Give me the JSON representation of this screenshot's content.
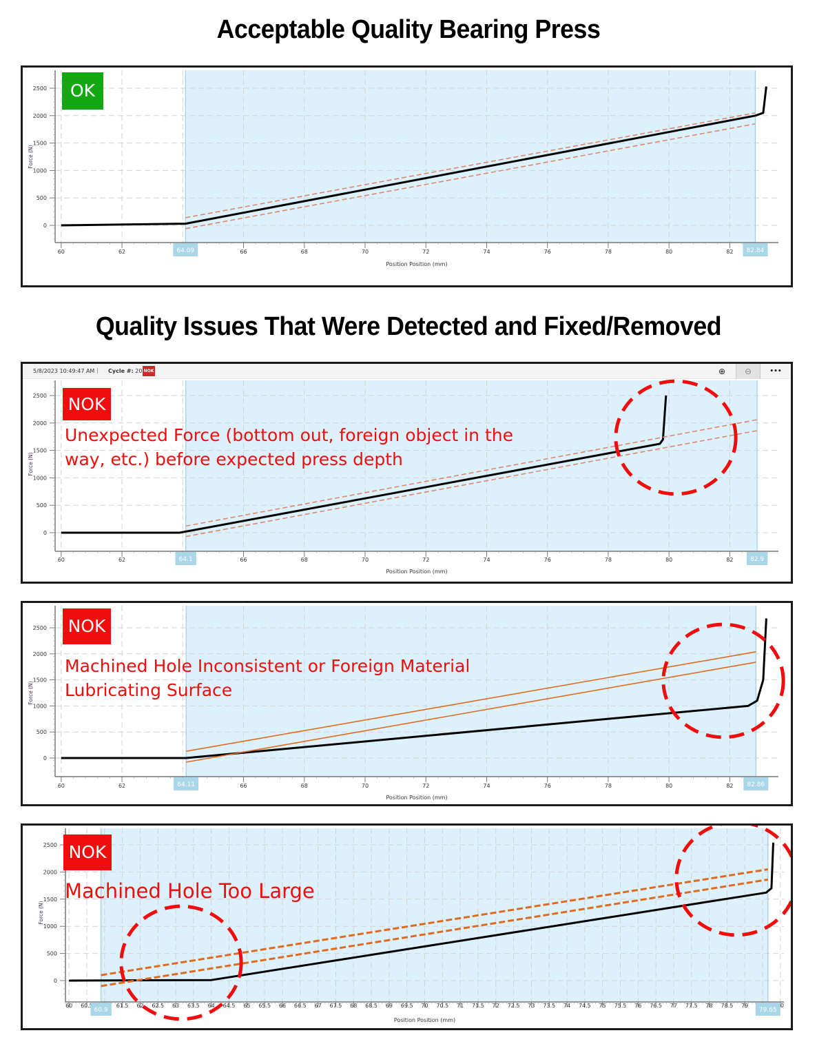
{
  "titles": {
    "acceptable": "Acceptable Quality Bearing Press",
    "issues": "Quality Issues That Were Detected and Fixed/Removed"
  },
  "colors": {
    "ok_badge": "#13a813",
    "nok_badge": "#f00d0d",
    "annotation_red": "#f00d0d",
    "window_fill": "#dcf1fc",
    "window_border": "#9dcfe4",
    "window_label_bg": "#a9d6e8",
    "limit_line": "#e0876a",
    "limit_line_bold": "#e06a1e",
    "curve": "#000000",
    "grid": "#d2d2d2",
    "axis": "#777777"
  },
  "panels": [
    {
      "id": "ok",
      "status": "OK",
      "annotation": [],
      "has_toolbar": false
    },
    {
      "id": "nok-unexpected-force",
      "status": "NOK",
      "annotation": [
        "Unexpected Force (bottom out, foreign object in the",
        "way, etc.) before expected press depth"
      ],
      "has_toolbar": true,
      "toolbar": {
        "timestamp": "5/8/2023 10:49:47 AM",
        "separator": "|",
        "cycle_label": "Cycle #:",
        "cycle_value": "20",
        "status_mini": "NOK",
        "zoom_in": "⊕",
        "zoom_out": "⊖",
        "more": "•••"
      }
    },
    {
      "id": "nok-hole-inconsistent",
      "status": "NOK",
      "annotation": [
        "Machined Hole Inconsistent or Foreign Material",
        "Lubricating Surface"
      ],
      "has_toolbar": false
    },
    {
      "id": "nok-hole-too-large",
      "status": "NOK",
      "annotation": [
        "Machined Hole Too Large"
      ],
      "has_toolbar": false
    }
  ],
  "chart_data": [
    {
      "type": "line",
      "title": "OK",
      "xlabel": "Position Position (mm)",
      "ylabel": "Force (N)",
      "xlim": [
        59.8,
        83.6
      ],
      "ylim": [
        -300,
        2750
      ],
      "x_ticks": [
        60,
        62,
        64,
        66,
        68,
        70,
        72,
        74,
        76,
        78,
        80,
        82
      ],
      "x_tick_labels": [
        "60",
        "62",
        "",
        "66",
        "68",
        "70",
        "72",
        "74",
        "76",
        "78",
        "80",
        "82"
      ],
      "y_ticks": [
        0,
        500,
        1000,
        1500,
        2000,
        2500
      ],
      "grid": true,
      "window": {
        "start": 64.09,
        "end": 82.84,
        "start_label": "64.09",
        "end_label": "82.84"
      },
      "series": [
        {
          "name": "Force curve",
          "x": [
            60,
            64.09,
            82.84,
            83.1,
            83.2
          ],
          "y": [
            0,
            30,
            2000,
            2050,
            2530
          ]
        },
        {
          "name": "Upper limit",
          "x": [
            64.09,
            82.84
          ],
          "y": [
            140,
            2050
          ],
          "style": "dashed"
        },
        {
          "name": "Lower limit",
          "x": [
            64.09,
            82.84
          ],
          "y": [
            -60,
            1850
          ],
          "style": "dashed"
        }
      ]
    },
    {
      "type": "line",
      "title": "NOK - Unexpected Force",
      "xlabel": "Position Position (mm)",
      "ylabel": "Force (N)",
      "xlim": [
        59.8,
        83.6
      ],
      "ylim": [
        -300,
        2750
      ],
      "x_ticks": [
        60,
        62,
        64,
        66,
        68,
        70,
        72,
        74,
        76,
        78,
        80,
        82
      ],
      "x_tick_labels": [
        "60",
        "62",
        "",
        "66",
        "68",
        "70",
        "72",
        "74",
        "76",
        "78",
        "80",
        "82"
      ],
      "y_ticks": [
        0,
        500,
        1000,
        1500,
        2000,
        2500
      ],
      "grid": true,
      "window": {
        "start": 64.1,
        "end": 82.9,
        "start_label": "64.1",
        "end_label": "82.9"
      },
      "series": [
        {
          "name": "Force curve",
          "x": [
            60,
            63.9,
            64.1,
            79.7,
            79.8,
            79.9
          ],
          "y": [
            0,
            0,
            20,
            1620,
            1700,
            2500
          ]
        },
        {
          "name": "Upper limit",
          "x": [
            64.1,
            82.9
          ],
          "y": [
            120,
            2060
          ],
          "style": "dashed"
        },
        {
          "name": "Lower limit",
          "x": [
            64.1,
            82.9
          ],
          "y": [
            -70,
            1860
          ],
          "style": "dashed"
        }
      ],
      "annotation_circle": {
        "cx": 79.0,
        "cy": 1700,
        "rx_mm": 2.0,
        "note": "Unexpected Force (bottom out, foreign object in the way, etc.) before expected press depth"
      }
    },
    {
      "type": "line",
      "title": "NOK - Machined Hole Inconsistent",
      "xlabel": "Position Position (mm)",
      "ylabel": "Force (N)",
      "xlim": [
        59.8,
        83.6
      ],
      "ylim": [
        -300,
        2750
      ],
      "x_ticks": [
        60,
        62,
        64,
        66,
        68,
        70,
        72,
        74,
        76,
        78,
        80,
        82
      ],
      "x_tick_labels": [
        "60",
        "62",
        "",
        "66",
        "68",
        "70",
        "72",
        "74",
        "76",
        "78",
        "80",
        "82"
      ],
      "y_ticks": [
        0,
        500,
        1000,
        1500,
        2000,
        2500
      ],
      "grid": true,
      "window": {
        "start": 64.11,
        "end": 82.86,
        "start_label": "64.11",
        "end_label": "82.86"
      },
      "series": [
        {
          "name": "Force curve",
          "x": [
            60,
            64.11,
            82.6,
            82.9,
            83.1,
            83.2
          ],
          "y": [
            0,
            0,
            1000,
            1100,
            1500,
            2680
          ]
        },
        {
          "name": "Upper limit",
          "x": [
            64.11,
            82.86
          ],
          "y": [
            130,
            2040
          ],
          "style": "solid"
        },
        {
          "name": "Lower limit",
          "x": [
            64.11,
            82.86
          ],
          "y": [
            -80,
            1840
          ],
          "style": "solid"
        }
      ],
      "annotation_circle": {
        "cx": 81.4,
        "cy": 1300,
        "note": "Machined Hole Inconsistent or Foreign Material Lubricating Surface"
      }
    },
    {
      "type": "line",
      "title": "NOK - Machined Hole Too Large",
      "xlabel": "Position Position (mm)",
      "ylabel": "Force (N)",
      "xlim": [
        59.9,
        80.1
      ],
      "ylim": [
        -300,
        2750
      ],
      "x_ticks": [
        60,
        60.5,
        61,
        61.5,
        62,
        62.5,
        63,
        63.5,
        64,
        64.5,
        65,
        65.5,
        66,
        66.5,
        67,
        67.5,
        68,
        68.5,
        69,
        69.5,
        70,
        70.5,
        71,
        71.5,
        72,
        72.5,
        73,
        73.5,
        74,
        74.5,
        75,
        75.5,
        76,
        76.5,
        77,
        77.5,
        78,
        78.5,
        79,
        79.5,
        80
      ],
      "x_tick_labels": [
        "60",
        "60.5",
        "",
        "61.5",
        "62",
        "62.5",
        "63",
        "63.5",
        "64",
        "64.5",
        "65",
        "65.5",
        "66",
        "66.5",
        "67",
        "67.5",
        "68",
        "68.5",
        "69",
        "69.5",
        "70",
        "70.5",
        "71",
        "71.5",
        "72",
        "72.5",
        "73",
        "73.5",
        "74",
        "74.5",
        "75",
        "75.5",
        "76",
        "76.5",
        "77",
        "77.5",
        "78",
        "78.5",
        "79",
        "",
        "80"
      ],
      "y_ticks": [
        0,
        500,
        1000,
        1500,
        2000,
        2500
      ],
      "grid": true,
      "window": {
        "start": 60.9,
        "end": 79.65,
        "start_label": "60.9",
        "end_label": "79.65"
      },
      "series": [
        {
          "name": "Force curve",
          "x": [
            60,
            64.0,
            79.6,
            79.75,
            79.8
          ],
          "y": [
            0,
            10,
            1620,
            1700,
            2540
          ]
        },
        {
          "name": "Upper limit",
          "x": [
            60.9,
            79.65
          ],
          "y": [
            100,
            2050
          ],
          "style": "dashed-bold"
        },
        {
          "name": "Lower limit",
          "x": [
            60.9,
            79.65
          ],
          "y": [
            -100,
            1860
          ],
          "style": "dashed-bold"
        }
      ],
      "annotation_circles": [
        {
          "cx": 63.2,
          "cy": 380,
          "note": "Machined Hole Too Large (early region)"
        },
        {
          "cx": 78.7,
          "cy": 1950,
          "note": "Machined Hole Too Large (end region)"
        }
      ]
    }
  ]
}
